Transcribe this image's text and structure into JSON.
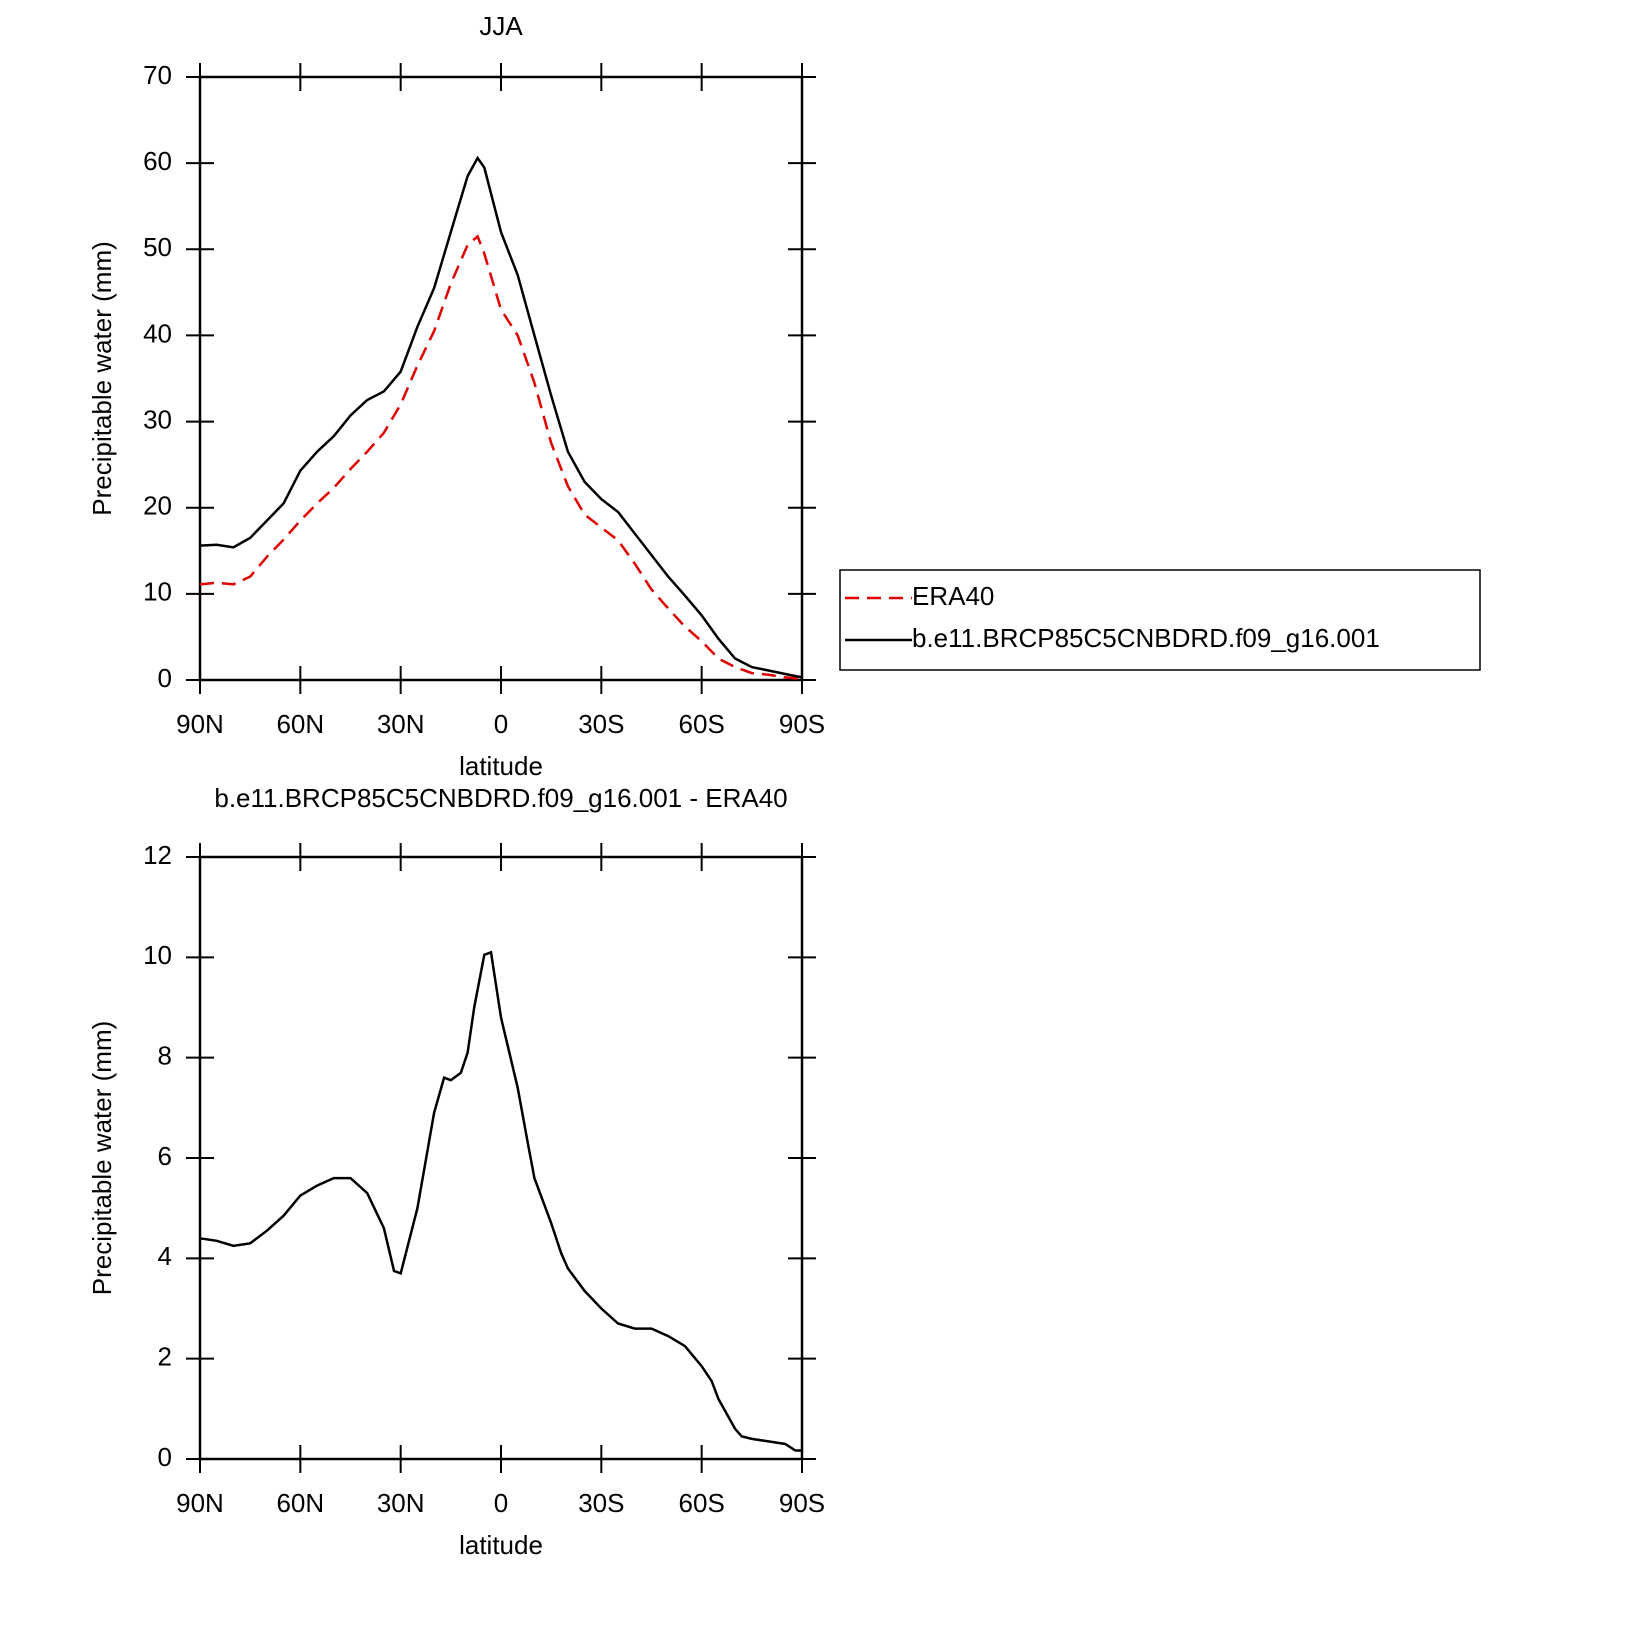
{
  "chart_data": [
    {
      "type": "line",
      "title": "JJA",
      "xlabel": "latitude",
      "ylabel": "Precipitable water (mm)",
      "x": [
        90,
        85,
        80,
        75,
        70,
        65,
        60,
        55,
        50,
        45,
        40,
        35,
        30,
        25,
        20,
        15,
        10,
        7,
        5,
        0,
        -5,
        -10,
        -15,
        -20,
        -25,
        -30,
        -35,
        -40,
        -45,
        -50,
        -55,
        -60,
        -65,
        -70,
        -75,
        -80,
        -85,
        -90
      ],
      "series": [
        {
          "name": "ERA40",
          "color": "#e00000",
          "style": "dashed",
          "values": [
            11.1,
            11.3,
            11.1,
            12,
            14.3,
            16.3,
            18.5,
            20.5,
            22.3,
            24.5,
            26.5,
            28.7,
            32,
            36.5,
            40.5,
            46,
            50.5,
            51.5,
            49.5,
            43,
            40,
            34.5,
            27.5,
            22.5,
            19.2,
            17.7,
            16.2,
            13.5,
            10.5,
            8.3,
            6.2,
            4.5,
            2.5,
            1.5,
            0.8,
            0.6,
            0.3,
            0.1
          ]
        },
        {
          "name": "b.e11.BRCP85C5CNBDRD.f09_g16.001",
          "color": "#000000",
          "style": "solid",
          "values": [
            15.6,
            15.7,
            15.4,
            16.5,
            18.5,
            20.5,
            24.3,
            26.5,
            28.3,
            30.7,
            32.5,
            33.5,
            35.8,
            41,
            45.5,
            52,
            58.5,
            60.6,
            59.5,
            52,
            47,
            40,
            33,
            26.5,
            23,
            21,
            19.5,
            17,
            14.5,
            12,
            9.8,
            7.5,
            4.8,
            2.5,
            1.5,
            1.1,
            0.7,
            0.3
          ]
        }
      ],
      "xlim": [
        90,
        -90
      ],
      "xticks": [
        {
          "value": 90,
          "label": "90N"
        },
        {
          "value": 60,
          "label": "60N"
        },
        {
          "value": 30,
          "label": "30N"
        },
        0,
        {
          "value": -30,
          "label": "30S"
        },
        {
          "value": -60,
          "label": "60S"
        },
        {
          "value": -90,
          "label": "90S"
        }
      ],
      "ylim": [
        0,
        70
      ],
      "yticks": [
        0,
        10,
        20,
        30,
        40,
        50,
        60,
        70
      ],
      "legend": "right"
    },
    {
      "type": "line",
      "title": "b.e11.BRCP85C5CNBDRD.f09_g16.001 - ERA40",
      "xlabel": "latitude",
      "ylabel": "Precipitable water (mm)",
      "x": [
        90,
        85,
        80,
        75,
        70,
        65,
        60,
        55,
        50,
        45,
        40,
        35,
        32,
        30,
        25,
        20,
        17,
        15,
        12,
        10,
        8,
        5,
        3,
        0,
        -5,
        -8,
        -10,
        -15,
        -18,
        -20,
        -25,
        -30,
        -35,
        -40,
        -45,
        -50,
        -55,
        -60,
        -63,
        -65,
        -70,
        -72,
        -75,
        -80,
        -85,
        -88,
        -90
      ],
      "series": [
        {
          "color": "#000000",
          "style": "solid",
          "values": [
            4.4,
            4.35,
            4.25,
            4.3,
            4.55,
            4.85,
            5.25,
            5.45,
            5.6,
            5.6,
            5.3,
            4.6,
            3.75,
            3.7,
            5.0,
            6.9,
            7.6,
            7.55,
            7.7,
            8.1,
            9.0,
            10.05,
            10.1,
            8.8,
            7.4,
            6.3,
            5.6,
            4.7,
            4.1,
            3.8,
            3.35,
            3.0,
            2.7,
            2.6,
            2.6,
            2.45,
            2.25,
            1.85,
            1.55,
            1.2,
            0.6,
            0.45,
            0.4,
            0.35,
            0.3,
            0.17,
            0.17
          ]
        }
      ],
      "xlim": [
        90,
        -90
      ],
      "xticks": [
        {
          "value": 90,
          "label": "90N"
        },
        {
          "value": 60,
          "label": "60N"
        },
        {
          "value": 30,
          "label": "30N"
        },
        0,
        {
          "value": -30,
          "label": "30S"
        },
        {
          "value": -60,
          "label": "60S"
        },
        {
          "value": -90,
          "label": "90S"
        }
      ],
      "ylim": [
        0,
        12
      ],
      "yticks": [
        0,
        2,
        4,
        6,
        8,
        10,
        12
      ]
    }
  ]
}
